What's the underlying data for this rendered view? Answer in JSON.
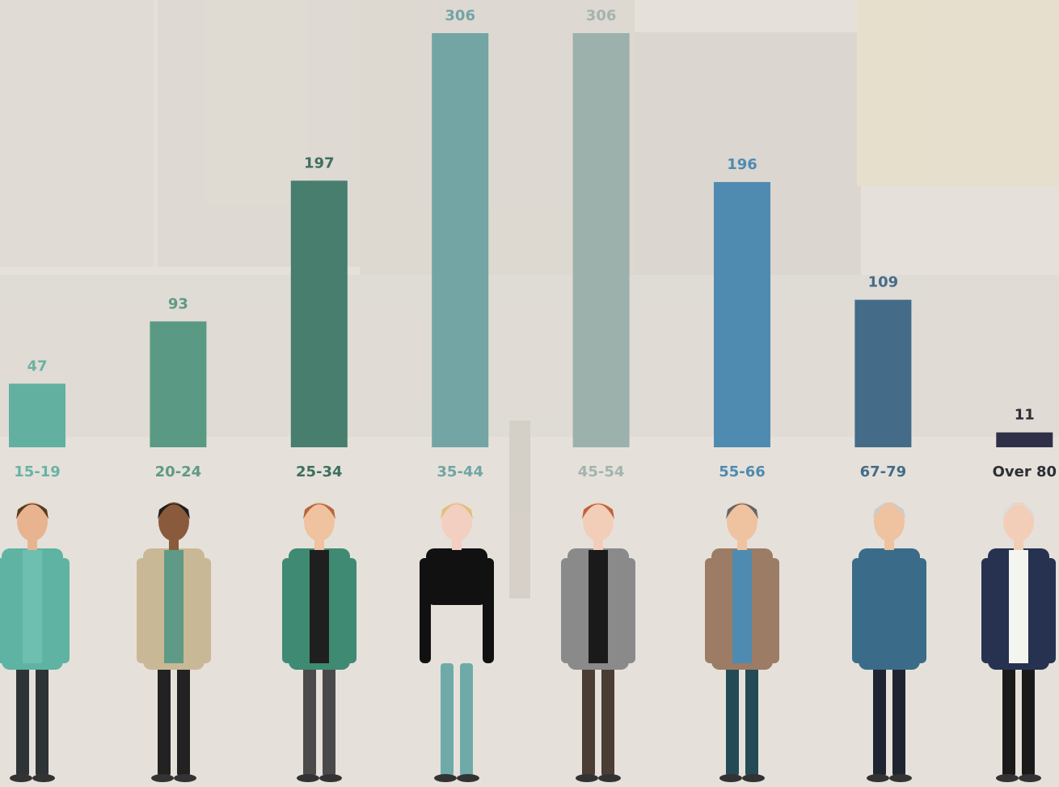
{
  "chart_data": {
    "type": "bar",
    "categories": [
      "15-19",
      "20-24",
      "25-34",
      "35-44",
      "45-54",
      "55-66",
      "67-79",
      "Over 80"
    ],
    "values": [
      47,
      93,
      197,
      306,
      306,
      196,
      109,
      11
    ],
    "colors": [
      "#62b0a0",
      "#5a9a84",
      "#477e6e",
      "#72a5a4",
      "#9cb1ab",
      "#4f8bb0",
      "#446c88",
      "#2f3047"
    ],
    "label_colors": [
      "#6ab3a3",
      "#5f9a86",
      "#3f6f60",
      "#72a5a4",
      "#a3b4ae",
      "#4f8bb0",
      "#446c88",
      "#2e2e36"
    ]
  }
}
